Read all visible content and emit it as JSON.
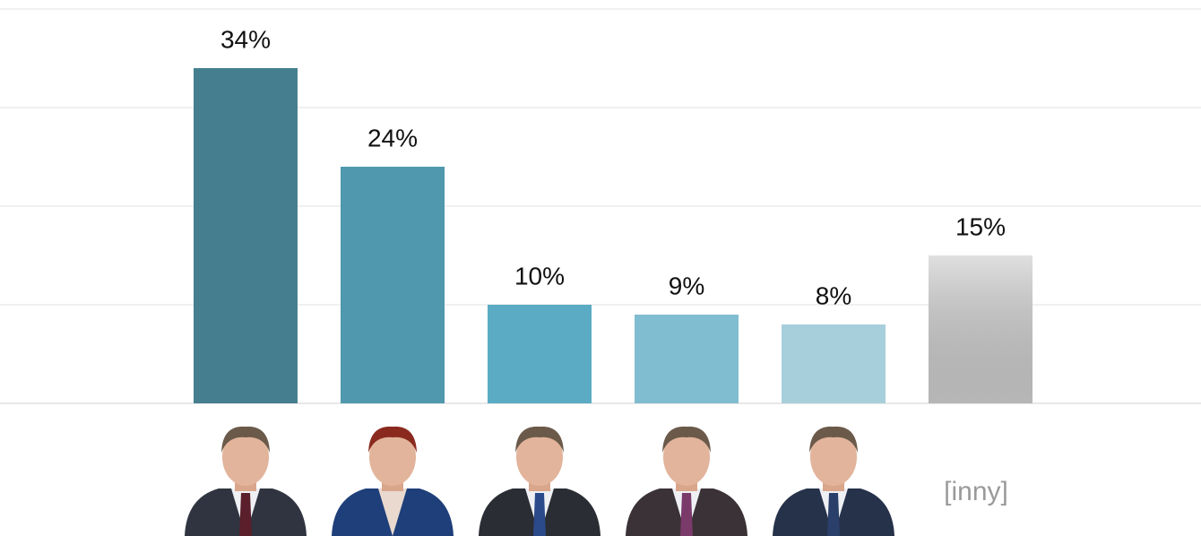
{
  "chart_data": {
    "type": "bar",
    "categories": [
      null,
      null,
      null,
      null,
      null,
      "[inny]"
    ],
    "values": [
      34,
      24,
      10,
      9,
      8,
      15
    ],
    "value_labels": [
      "34%",
      "24%",
      "10%",
      "9%",
      "8%",
      "15%"
    ],
    "colors": [
      "#457f8f",
      "#4f98ad",
      "#5aabc3",
      "#80bdd1",
      "#a7cfdb",
      "#cfcfcf"
    ],
    "ylim": [
      0,
      40
    ],
    "yticks": [
      0,
      10,
      20,
      30,
      40
    ],
    "grid": true
  }
}
